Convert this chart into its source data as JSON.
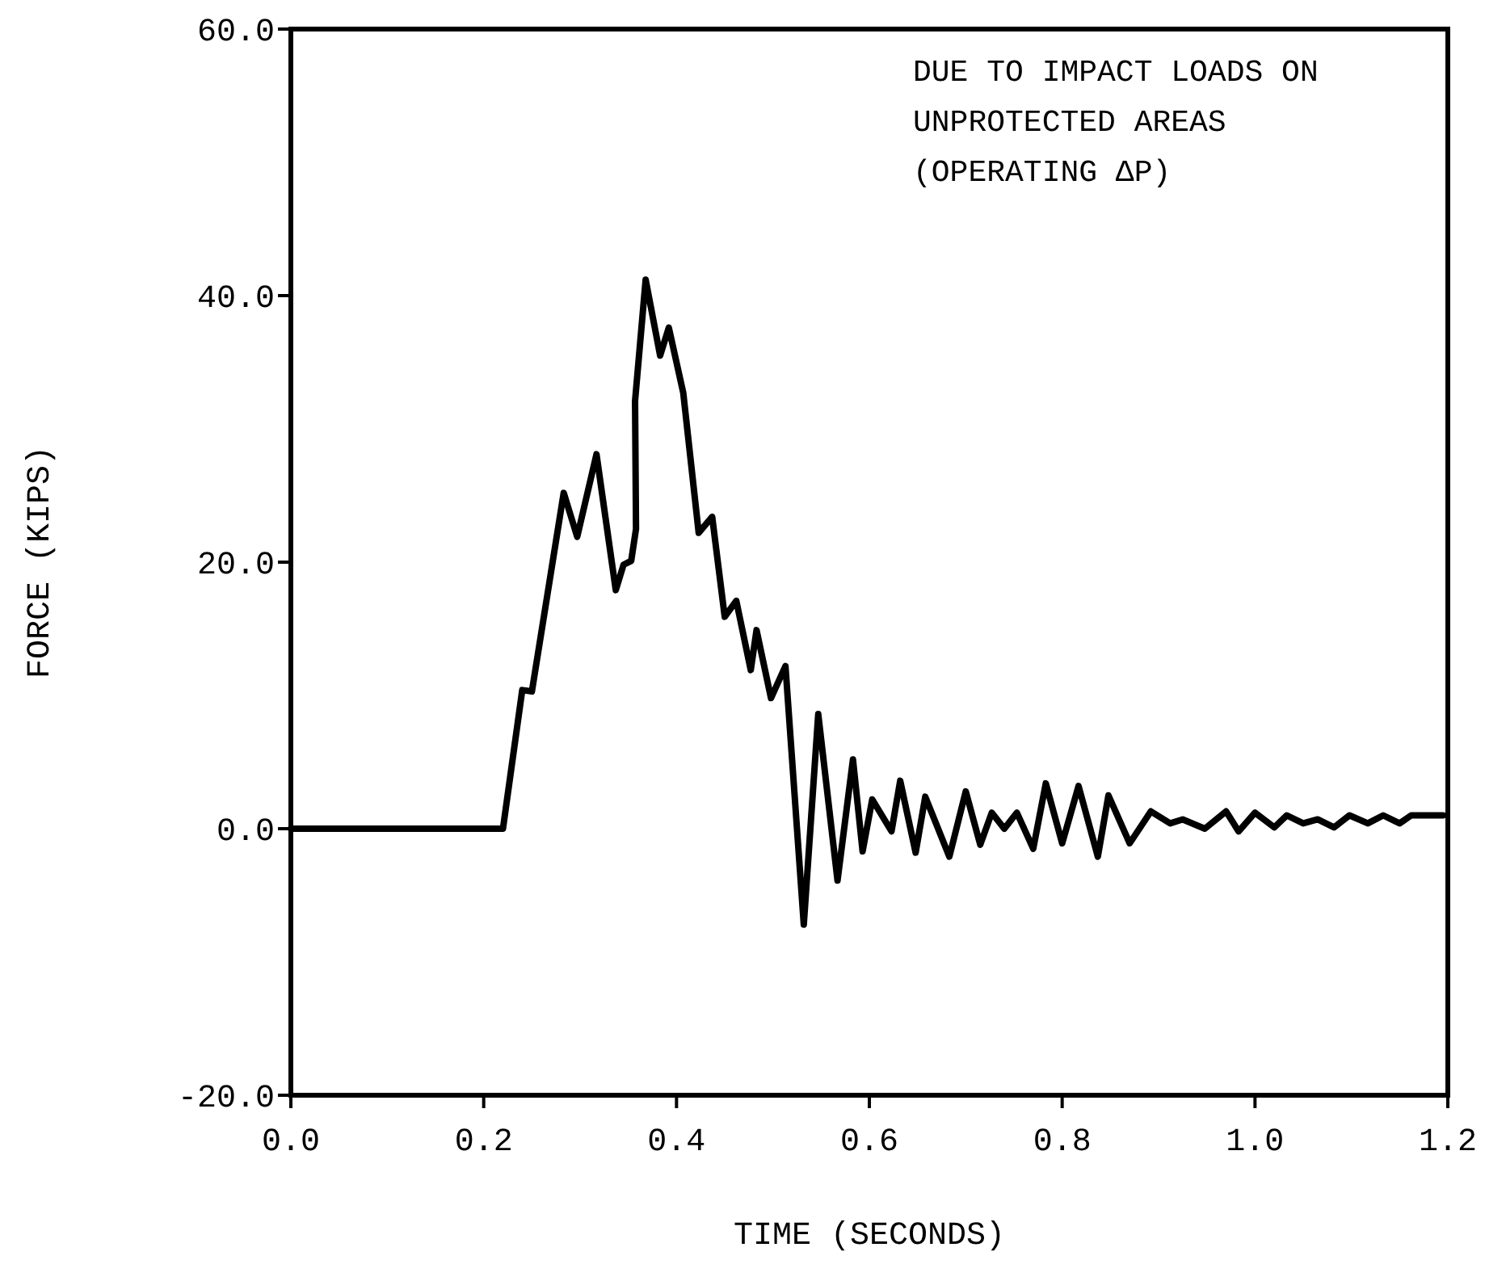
{
  "chart_data": {
    "type": "line",
    "xlabel": "TIME (SECONDS)",
    "ylabel": "FORCE (KIPS)",
    "annotations": [
      "DUE TO IMPACT LOADS ON",
      "UNPROTECTED AREAS",
      "(OPERATING ΔP)"
    ],
    "xlim": [
      0,
      1.2
    ],
    "ylim": [
      -20,
      60
    ],
    "xticks": [
      {
        "value": 0,
        "label": "0.0"
      },
      {
        "value": 0.2,
        "label": "0.2"
      },
      {
        "value": 0.4,
        "label": "0.4"
      },
      {
        "value": 0.6,
        "label": "0.6"
      },
      {
        "value": 0.8,
        "label": "0.8"
      },
      {
        "value": 1.0,
        "label": "1.0"
      },
      {
        "value": 1.2,
        "label": "1.2"
      }
    ],
    "yticks": [
      {
        "value": -20,
        "label": "-20.0"
      },
      {
        "value": 0,
        "label": "0.0"
      },
      {
        "value": 20,
        "label": "20.0"
      },
      {
        "value": 40,
        "label": "40.0"
      },
      {
        "value": 60,
        "label": "60.0"
      }
    ],
    "grid": false,
    "marker": "none",
    "line_style": "solid",
    "series": [
      {
        "color": "#000000",
        "x": [
          0,
          0.22,
          0.24,
          0.25,
          0.283,
          0.297,
          0.317,
          0.337,
          0.345,
          0.353,
          0.358,
          0.357,
          0.368,
          0.383,
          0.392,
          0.407,
          0.423,
          0.437,
          0.45,
          0.462,
          0.477,
          0.483,
          0.498,
          0.513,
          0.532,
          0.547,
          0.567,
          0.583,
          0.593,
          0.603,
          0.623,
          0.632,
          0.648,
          0.658,
          0.683,
          0.7,
          0.715,
          0.727,
          0.74,
          0.753,
          0.77,
          0.783,
          0.8,
          0.817,
          0.837,
          0.848,
          0.87,
          0.892,
          0.912,
          0.925,
          0.948,
          0.97,
          0.983,
          1.0,
          1.02,
          1.033,
          1.05,
          1.065,
          1.082,
          1.098,
          1.117,
          1.133,
          1.15,
          1.162,
          1.195
        ],
        "values": [
          0,
          0,
          10.4,
          10.3,
          25.2,
          21.9,
          28.1,
          17.9,
          19.8,
          20.1,
          22.5,
          32.1,
          41.2,
          35.5,
          37.6,
          32.7,
          22.2,
          23.4,
          15.9,
          17.1,
          11.9,
          14.9,
          9.8,
          12.2,
          -7.2,
          8.6,
          -3.9,
          5.2,
          -1.7,
          2.2,
          -0.2,
          3.6,
          -1.8,
          2.4,
          -2.1,
          2.8,
          -1.2,
          1.2,
          0,
          1.2,
          -1.5,
          3.4,
          -1.1,
          3.2,
          -2.1,
          2.5,
          -1.1,
          1.3,
          0.4,
          0.7,
          0,
          1.3,
          -0.2,
          1.2,
          0.1,
          1.0,
          0.4,
          0.7,
          0.1,
          1.0,
          0.4,
          1.0,
          0.4,
          1.0,
          1.0
        ]
      }
    ]
  }
}
